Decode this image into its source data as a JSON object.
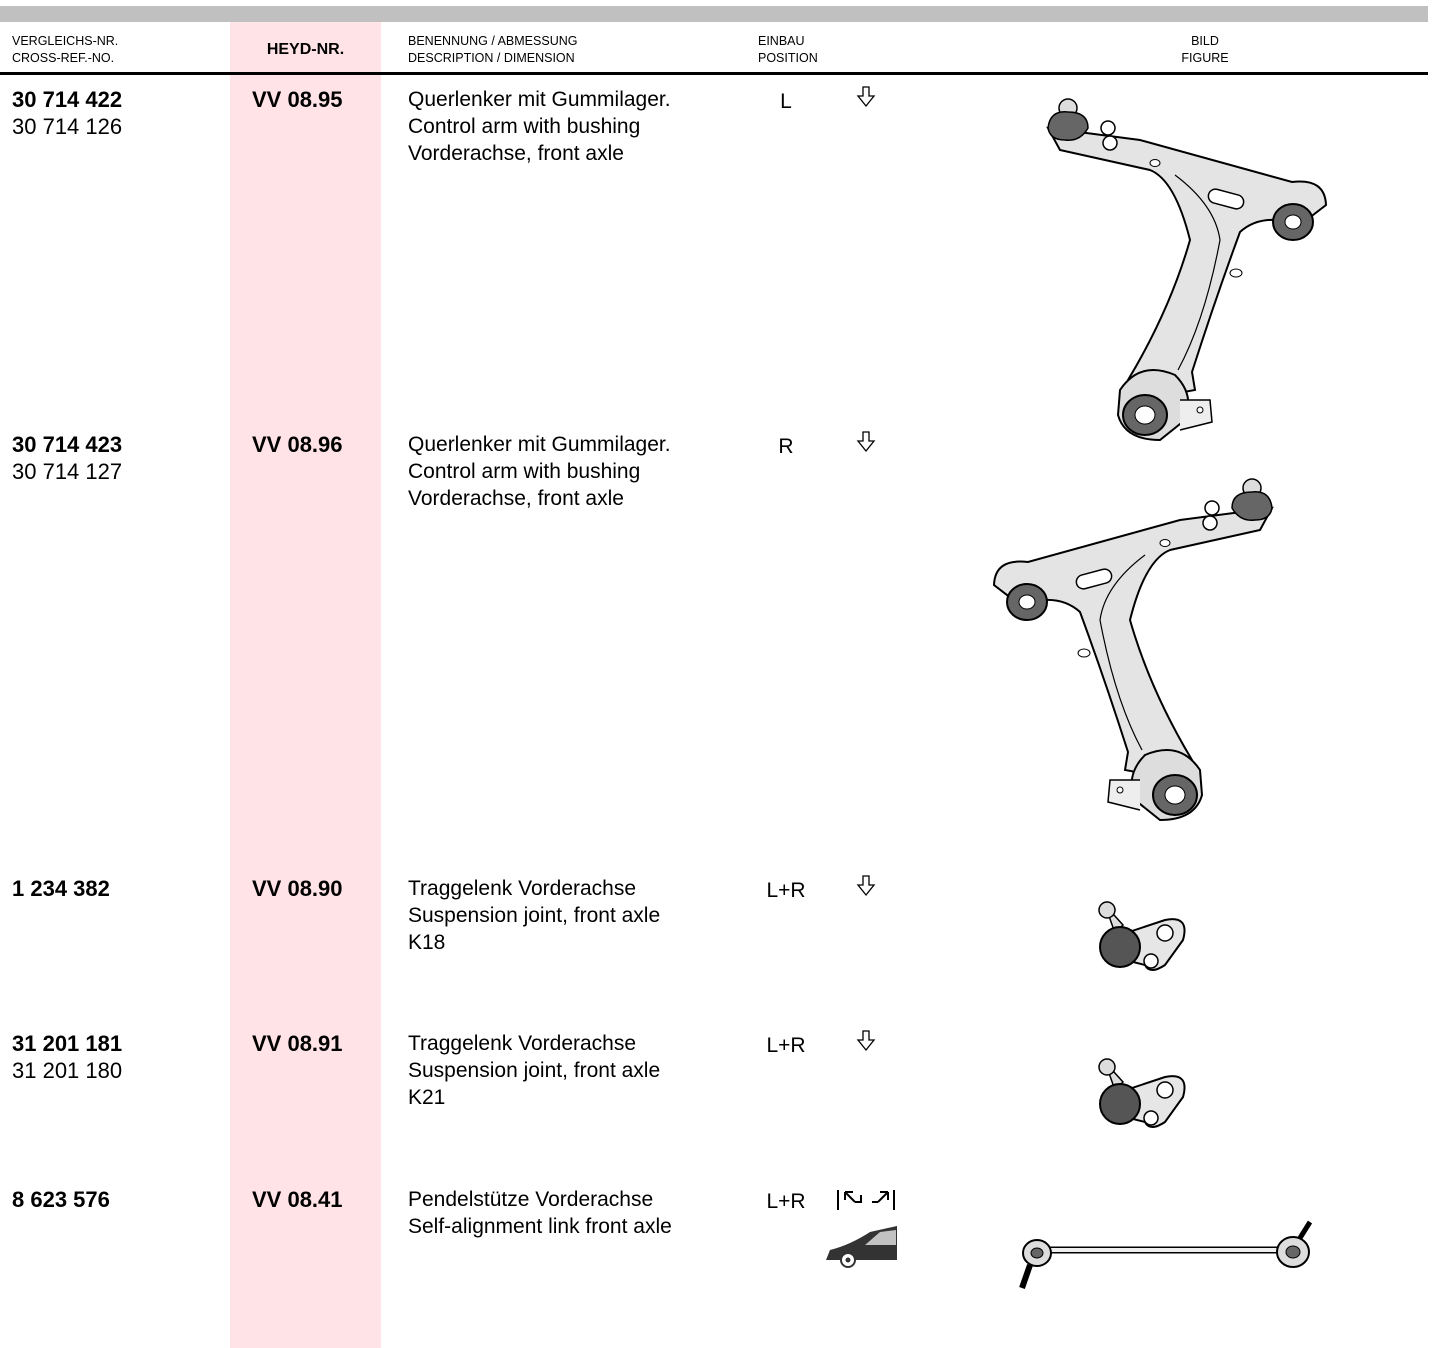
{
  "header": {
    "cross_ref": [
      "VERGLEICHS-NR.",
      "CROSS-REF.-NO."
    ],
    "heyd": "HEYD-NR.",
    "description": [
      "BENENNUNG / ABMESSUNG",
      "DESCRIPTION / DIMENSION"
    ],
    "position": [
      "EINBAU",
      "POSITION"
    ],
    "figure": [
      "BILD",
      "FIGURE"
    ]
  },
  "rows": [
    {
      "cross_ref": [
        "30 714 422",
        "30 714 126"
      ],
      "heyd": "VV 08.95",
      "description": [
        "Querlenker mit Gummilager.",
        "Control arm with bushing",
        "Vorderachse, front axle"
      ],
      "position": "L"
    },
    {
      "cross_ref": [
        "30 714 423",
        "30 714 127"
      ],
      "heyd": "VV 08.96",
      "description": [
        "Querlenker mit Gummilager.",
        "Control arm with bushing",
        "Vorderachse, front axle"
      ],
      "position": "R"
    },
    {
      "cross_ref": [
        "1 234 382"
      ],
      "heyd": "VV 08.90",
      "description": [
        "Traggelenk Vorderachse",
        "Suspension joint, front axle",
        "K18"
      ],
      "position": "L+R"
    },
    {
      "cross_ref": [
        "31 201 181",
        "31 201 180"
      ],
      "heyd": "VV 08.91",
      "description": [
        "Traggelenk Vorderachse",
        "Suspension joint, front axle",
        "K21"
      ],
      "position": "L+R"
    },
    {
      "cross_ref": [
        "8 623 576"
      ],
      "heyd": "VV 08.41",
      "description": [
        "Pendelstütze Vorderachse",
        "Self-alignment link front axle"
      ],
      "position": "L+R"
    }
  ]
}
